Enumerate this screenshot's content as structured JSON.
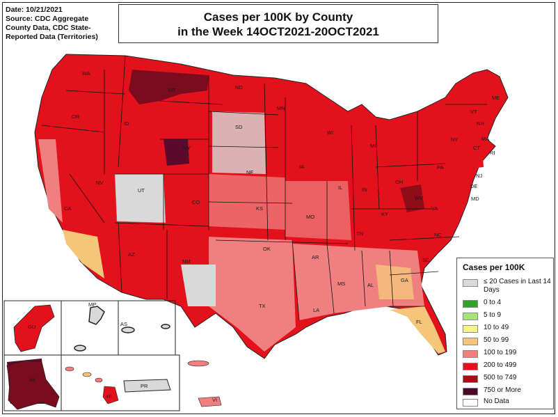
{
  "header": {
    "date": "Date: 10/21/2021",
    "source": "Source: CDC Aggregate County Data, CDC State-Reported Data (Territories)"
  },
  "title": {
    "line1": "Cases per 100K by County",
    "line2": "in the Week 14OCT2021-20OCT2021"
  },
  "legend": {
    "title": "Cases per 100K",
    "items": [
      {
        "label": "≤ 20 Cases in Last 14 Days",
        "color": "#d9d9d9"
      },
      {
        "label": "0 to 4",
        "color": "#33a02c"
      },
      {
        "label": "5 to 9",
        "color": "#a6e37a"
      },
      {
        "label": "10 to 49",
        "color": "#f7f28a"
      },
      {
        "label": "50 to 99",
        "color": "#f5c57a"
      },
      {
        "label": "100 to 199",
        "color": "#f08080"
      },
      {
        "label": "200 to 499",
        "color": "#e3111b"
      },
      {
        "label": "500 to 749",
        "color": "#a50f15"
      },
      {
        "label": "750 or More",
        "color": "#4a0a2a"
      },
      {
        "label": "No Data",
        "color": "#ffffff"
      }
    ]
  },
  "state_labels": [
    "WA",
    "OR",
    "ID",
    "MT",
    "ND",
    "MN",
    "WI",
    "MI",
    "NY",
    "VT",
    "NH",
    "ME",
    "MA",
    "CT",
    "RI",
    "NJ",
    "DE",
    "MD",
    "PA",
    "OH",
    "IN",
    "IL",
    "IA",
    "SD",
    "NE",
    "WY",
    "NV",
    "CA",
    "UT",
    "CO",
    "KS",
    "MO",
    "KY",
    "WV",
    "VA",
    "NC",
    "TN",
    "SC",
    "GA",
    "AL",
    "MS",
    "AR",
    "LA",
    "OK",
    "TX",
    "NM",
    "AZ",
    "FL"
  ],
  "territory_labels": {
    "guam": "GU",
    "mp": "MP",
    "as": "AS",
    "ak": "AK",
    "hi": "HI",
    "pr": "PR",
    "vi": "VI"
  }
}
